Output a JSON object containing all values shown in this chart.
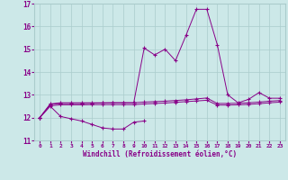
{
  "x": [
    0,
    1,
    2,
    3,
    4,
    5,
    6,
    7,
    8,
    9,
    10,
    11,
    12,
    13,
    14,
    15,
    16,
    17,
    18,
    19,
    20,
    21,
    22,
    23
  ],
  "line1_x": [
    0,
    1,
    2,
    3,
    4,
    5,
    6,
    7,
    8,
    9,
    10
  ],
  "line1_y": [
    12.0,
    12.5,
    12.05,
    11.95,
    11.85,
    11.7,
    11.55,
    11.5,
    11.5,
    11.8,
    11.85
  ],
  "line2_y": [
    12.0,
    12.6,
    12.65,
    12.65,
    12.65,
    12.65,
    12.65,
    12.65,
    12.65,
    12.65,
    15.05,
    14.75,
    15.0,
    14.5,
    15.6,
    16.75,
    16.75,
    15.2,
    13.0,
    12.65,
    12.8,
    13.1,
    12.85,
    12.85
  ],
  "line3_y": [
    12.0,
    12.58,
    12.62,
    12.62,
    12.62,
    12.63,
    12.64,
    12.65,
    12.65,
    12.65,
    12.68,
    12.7,
    12.72,
    12.75,
    12.78,
    12.82,
    12.86,
    12.62,
    12.62,
    12.63,
    12.65,
    12.68,
    12.72,
    12.75
  ],
  "line4_y": [
    12.0,
    12.52,
    12.56,
    12.56,
    12.56,
    12.57,
    12.57,
    12.57,
    12.57,
    12.57,
    12.6,
    12.62,
    12.64,
    12.67,
    12.7,
    12.73,
    12.76,
    12.55,
    12.55,
    12.56,
    12.58,
    12.61,
    12.65,
    12.68
  ],
  "line_color": "#880088",
  "bg_color": "#cce8e8",
  "grid_color": "#aacccc",
  "text_color": "#880088",
  "xlabel": "Windchill (Refroidissement éolien,°C)",
  "xlim": [
    0,
    23
  ],
  "ylim": [
    11,
    17
  ],
  "yticks": [
    11,
    12,
    13,
    14,
    15,
    16,
    17
  ],
  "xticks": [
    0,
    1,
    2,
    3,
    4,
    5,
    6,
    7,
    8,
    9,
    10,
    11,
    12,
    13,
    14,
    15,
    16,
    17,
    18,
    19,
    20,
    21,
    22,
    23
  ]
}
